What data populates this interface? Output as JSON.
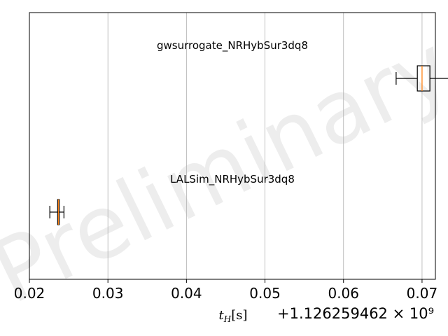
{
  "chart_data": {
    "type": "boxplot",
    "orientation": "horizontal",
    "watermark": "Preliminary",
    "xlabel": "t_H [s]",
    "x_offset_text": "+1.126259462 × 10⁹",
    "xlim": [
      0.02,
      0.0717
    ],
    "xticks": [
      {
        "value": 0.02,
        "label": "0.02"
      },
      {
        "value": 0.03,
        "label": "0.03"
      },
      {
        "value": 0.04,
        "label": "0.04"
      },
      {
        "value": 0.05,
        "label": "0.05"
      },
      {
        "value": 0.06,
        "label": "0.06"
      },
      {
        "value": 0.07,
        "label": "0.07"
      }
    ],
    "grid": "vertical",
    "series": [
      {
        "name": "gwsurrogate_NRHybSur3dq8",
        "whisker_low": 0.0667,
        "q1": 0.0694,
        "median": 0.07,
        "q3": 0.071,
        "whisker_high": 0.0745
      },
      {
        "name": "LALSim_NRHybSur3dq8",
        "whisker_low": 0.0226,
        "q1": 0.0236,
        "median": 0.0237,
        "q3": 0.0238,
        "whisker_high": 0.0244
      }
    ],
    "colors": {
      "box": "#000000",
      "median": "#ff7f0e",
      "grid": "#b0b0b0"
    }
  }
}
